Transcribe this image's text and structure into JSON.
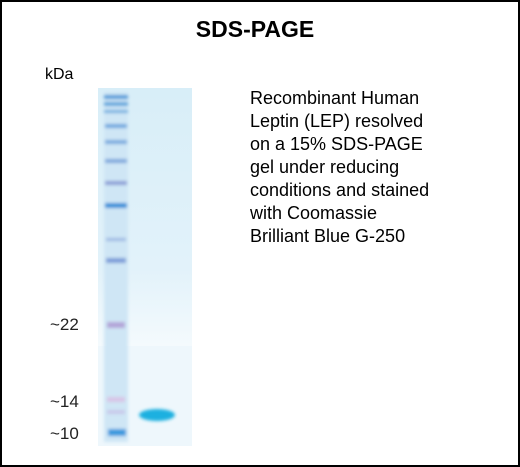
{
  "header": {
    "title": "SDS-PAGE"
  },
  "gel": {
    "unit_label": "kDa",
    "markers": [
      "~22",
      "~14",
      "~10"
    ]
  },
  "description": {
    "lines": [
      "Recombinant Human",
      "Leptin (LEP) resolved",
      "on a 15% SDS-PAGE",
      "gel under reducing",
      "conditions and stained",
      "with Coomassie",
      "Brilliant Blue G-250"
    ]
  }
}
